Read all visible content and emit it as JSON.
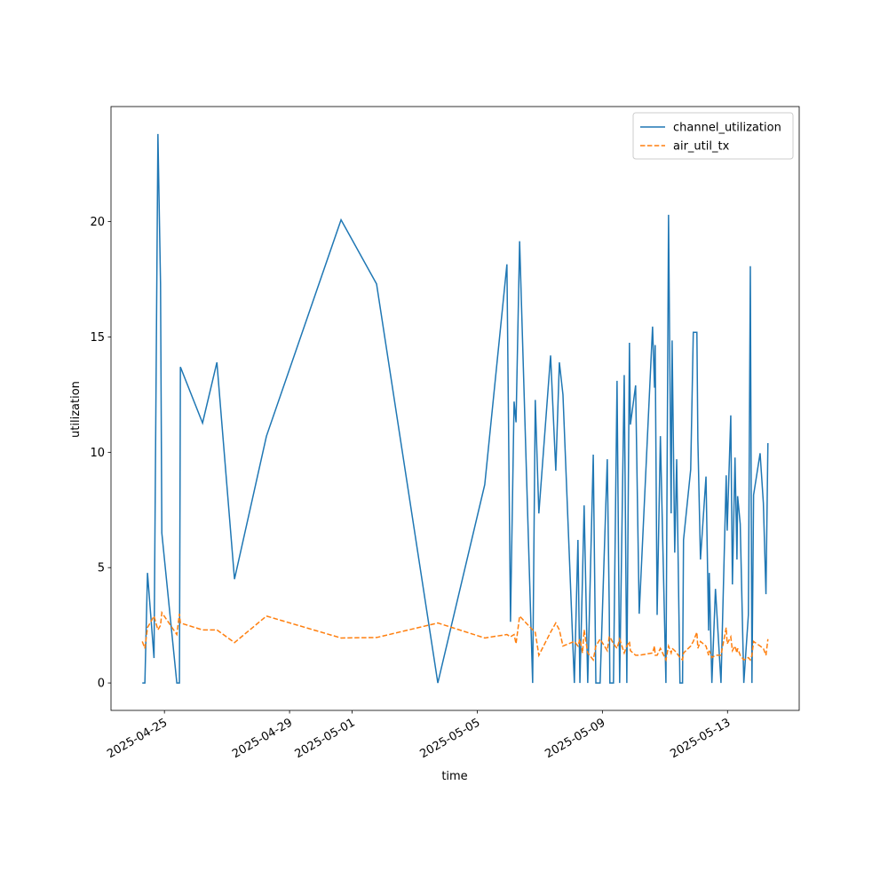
{
  "chart_data": {
    "type": "line",
    "x_label": "time",
    "y_label": "utilization",
    "x": [
      "2025-04-24 07:00",
      "2025-04-24 09:00",
      "2025-04-24 11:00",
      "2025-04-24 16:00",
      "2025-04-24 19:00",
      "2025-04-24 21:00",
      "2025-04-24 22:00",
      "2025-04-25 09:30",
      "2025-04-25 11:30",
      "2025-04-25 12:15",
      "2025-04-26 05:15",
      "2025-04-26 16:15",
      "2025-04-27 05:45",
      "2025-04-28 06:15",
      "2025-04-30 15:30",
      "2025-05-01 18:45",
      "2025-05-03 17:45",
      "2025-05-05 05:45",
      "2025-05-05 22:45",
      "2025-05-06 01:30",
      "2025-05-06 04:15",
      "2025-05-06 05:45",
      "2025-05-06 08:30",
      "2025-05-06 18:30",
      "2025-05-06 20:30",
      "2025-05-06 23:15",
      "2025-05-07 08:15",
      "2025-05-07 12:15",
      "2025-05-07 15:00",
      "2025-05-07 17:45",
      "2025-05-08 02:30",
      "2025-05-08 05:15",
      "2025-05-08 06:45",
      "2025-05-08 08:45",
      "2025-05-08 10:00",
      "2025-05-08 12:45",
      "2025-05-08 17:00",
      "2025-05-08 19:00",
      "2025-05-08 22:15",
      "2025-05-09 03:45",
      "2025-05-09 05:15",
      "2025-05-09 05:45",
      "2025-05-09 08:30",
      "2025-05-09 11:15",
      "2025-05-09 13:15",
      "2025-05-09 16:45",
      "2025-05-09 18:45",
      "2025-05-09 20:45",
      "2025-05-09 21:30",
      "2025-05-10 01:30",
      "2025-05-10 04:15",
      "2025-05-10 14:30",
      "2025-05-10 16:00",
      "2025-05-10 16:30",
      "2025-05-10 18:00",
      "2025-05-10 20:30",
      "2025-05-11 00:45",
      "2025-05-11 02:45",
      "2025-05-11 04:45",
      "2025-05-11 05:30",
      "2025-05-11 07:30",
      "2025-05-11 09:00",
      "2025-05-11 11:30",
      "2025-05-11 13:30",
      "2025-05-11 14:15",
      "2025-05-11 19:45",
      "2025-05-11 21:45",
      "2025-05-12 00:30",
      "2025-05-12 01:15",
      "2025-05-12 03:15",
      "2025-05-12 07:30",
      "2025-05-12 09:30",
      "2025-05-12 10:00",
      "2025-05-12 12:00",
      "2025-05-12 14:45",
      "2025-05-12 19:00",
      "2025-05-12 23:00",
      "2025-05-12 23:45",
      "2025-05-13 02:30",
      "2025-05-13 03:45",
      "2025-05-13 05:45",
      "2025-05-13 07:15",
      "2025-05-13 07:45",
      "2025-05-13 09:45",
      "2025-05-13 12:30",
      "2025-05-13 16:00",
      "2025-05-13 17:30",
      "2025-05-13 18:45",
      "2025-05-13 20:00",
      "2025-05-14 01:00",
      "2025-05-14 03:30",
      "2025-05-14 05:30",
      "2025-05-14 07:00"
    ],
    "series": [
      {
        "name": "channel_utilization",
        "color": "#1f77b4",
        "dash": "solid",
        "values": [
          0,
          0,
          4.77,
          1.08,
          23.8,
          17.3,
          6.5,
          0,
          0,
          13.7,
          11.27,
          13.9,
          4.5,
          10.7,
          20.08,
          17.3,
          0,
          8.6,
          18.15,
          2.65,
          12.2,
          11.3,
          19.15,
          0,
          12.27,
          7.35,
          14.2,
          9.2,
          13.9,
          12.5,
          0,
          6.2,
          0,
          4.6,
          7.7,
          0,
          9.9,
          0,
          0,
          9.7,
          3.3,
          0,
          0,
          13.1,
          0,
          13.35,
          0,
          14.75,
          11.2,
          12.9,
          3.0,
          15.45,
          12.8,
          14.65,
          2.95,
          10.7,
          0,
          20.3,
          7.35,
          14.85,
          5.65,
          9.7,
          0,
          0,
          6.2,
          9.25,
          15.2,
          15.2,
          10.55,
          5.35,
          8.95,
          2.27,
          4.77,
          0,
          4.08,
          0,
          9.0,
          6.6,
          11.6,
          4.27,
          9.77,
          5.35,
          8.1,
          6.9,
          0,
          2.95,
          18.07,
          0,
          8.15,
          9.96,
          7.8,
          3.85,
          10.4
        ]
      },
      {
        "name": "air_util_tx",
        "color": "#ff7f0e",
        "dash": "dashed",
        "values": [
          1.8,
          1.5,
          2.4,
          2.9,
          2.3,
          2.5,
          3.05,
          2.1,
          3.0,
          2.6,
          2.3,
          2.3,
          1.75,
          2.9,
          1.95,
          1.97,
          2.6,
          1.95,
          2.1,
          2.0,
          2.1,
          1.7,
          2.9,
          2.3,
          2.2,
          1.2,
          2.2,
          2.6,
          2.3,
          1.6,
          1.8,
          1.6,
          1.9,
          1.3,
          2.3,
          1.3,
          1.0,
          1.6,
          1.9,
          1.4,
          2.0,
          2.0,
          1.7,
          1.5,
          1.9,
          1.3,
          1.6,
          1.8,
          1.4,
          1.2,
          1.2,
          1.3,
          1.6,
          1.2,
          1.2,
          1.5,
          1.0,
          1.6,
          1.3,
          1.5,
          1.4,
          1.3,
          1.1,
          1.0,
          1.3,
          1.6,
          1.8,
          2.2,
          1.5,
          1.8,
          1.6,
          1.2,
          1.4,
          1.1,
          1.2,
          1.2,
          2.4,
          1.7,
          2.0,
          1.4,
          1.6,
          1.3,
          1.5,
          1.2,
          1.0,
          1.1,
          1.0,
          1.2,
          1.8,
          1.6,
          1.5,
          1.2,
          1.9
        ]
      }
    ],
    "xlim": [
      "2025-04-23 07:00",
      "2025-05-15 07:00"
    ],
    "xticks": [
      "2025-04-25",
      "2025-04-29",
      "2025-05-01",
      "2025-05-05",
      "2025-05-09",
      "2025-05-13"
    ],
    "ylim": [
      -1.19,
      24.99
    ],
    "yticks": [
      0,
      5,
      10,
      15,
      20
    ],
    "grid": false,
    "legend": "upper right"
  }
}
